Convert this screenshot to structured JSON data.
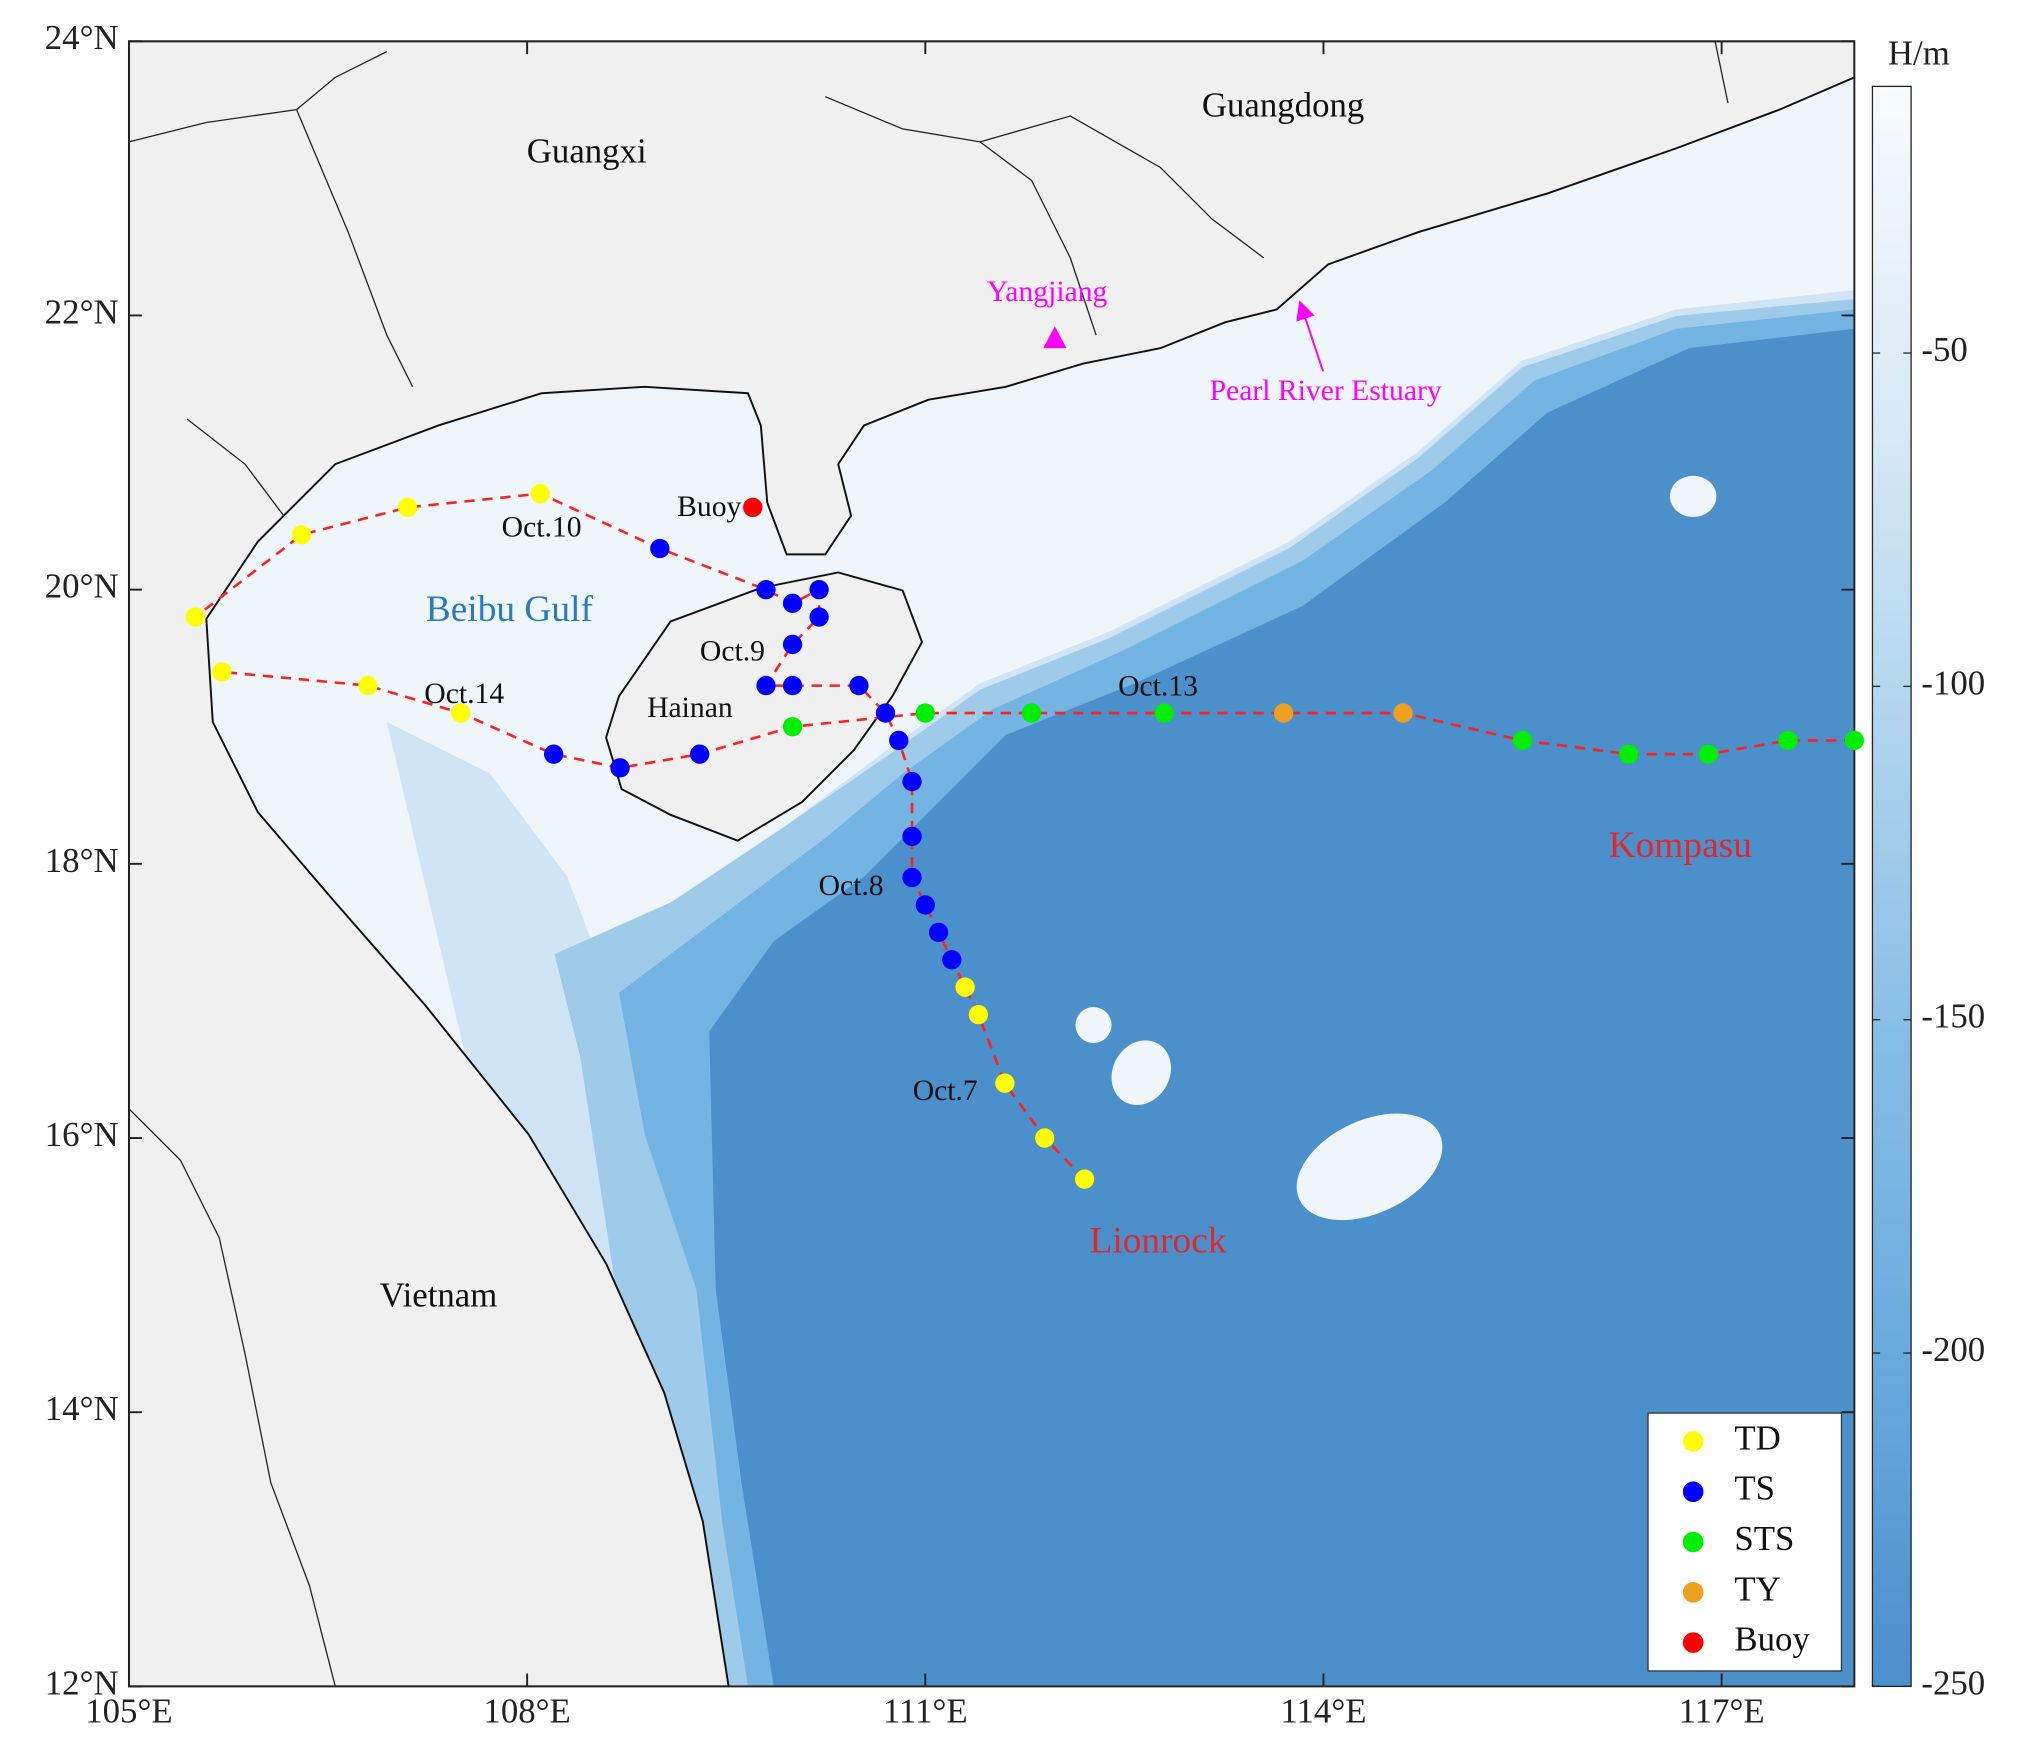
{
  "map": {
    "xlim": [
      105,
      118
    ],
    "ylim": [
      12,
      24
    ],
    "xticks": [
      {
        "value": 105,
        "label": "105°E"
      },
      {
        "value": 108,
        "label": "108°E"
      },
      {
        "value": 111,
        "label": "111°E"
      },
      {
        "value": 114,
        "label": "114°E"
      },
      {
        "value": 117,
        "label": "117°E"
      }
    ],
    "yticks": [
      {
        "value": 12,
        "label": "12°N"
      },
      {
        "value": 14,
        "label": "14°N"
      },
      {
        "value": 16,
        "label": "16°N"
      },
      {
        "value": 18,
        "label": "18°N"
      },
      {
        "value": 20,
        "label": "20°N"
      },
      {
        "value": 22,
        "label": "22°N"
      },
      {
        "value": 24,
        "label": "24°N"
      }
    ],
    "colorbar": {
      "label": "H/m",
      "clim": [
        -250,
        -10
      ],
      "ticks": [
        -50,
        -100,
        -150,
        -200,
        -250
      ]
    },
    "place_names": [
      "Guangxi",
      "Guangdong",
      "Yangjiang",
      "Pearl River Estuary",
      "Beibu Gulf",
      "Hainan",
      "Vietnam"
    ],
    "date_labels": [
      "Oct.7",
      "Oct.8",
      "Oct.9",
      "Oct.10",
      "Oct.13",
      "Oct.14"
    ],
    "legend": [
      {
        "name": "TD",
        "color": "#ffff00"
      },
      {
        "name": "TS",
        "color": "#0000ff"
      },
      {
        "name": "STS",
        "color": "#00ee00"
      },
      {
        "name": "TY",
        "color": "#f0a020"
      },
      {
        "name": "Buoy",
        "color": "#ff0000"
      }
    ],
    "buoy": {
      "label": "Buoy",
      "lon": 109.7,
      "lat": 20.6,
      "color": "#ff0000"
    },
    "tracks": [
      {
        "name": "Lionrock",
        "color": "#ff2020",
        "lon": [
          112.2,
          111.9,
          111.6,
          111.4,
          111.3,
          111.2,
          111.1,
          111.0,
          110.9,
          110.9,
          110.9,
          110.8,
          110.7,
          110.5,
          110.0,
          109.8,
          110.0,
          110.2,
          110.2,
          110.0,
          109.8,
          109.0,
          108.1,
          107.1,
          106.3,
          105.5
        ],
        "lat": [
          15.7,
          16.0,
          16.4,
          16.9,
          17.1,
          17.3,
          17.5,
          17.7,
          17.9,
          18.2,
          18.6,
          18.9,
          19.1,
          19.3,
          19.3,
          19.3,
          19.6,
          19.8,
          20.0,
          19.9,
          20.0,
          20.3,
          20.7,
          20.6,
          20.4,
          19.8
        ],
        "category": [
          "TD",
          "TD",
          "TD",
          "TD",
          "TD",
          "TS",
          "TS",
          "TS",
          "TS",
          "TS",
          "TS",
          "TS",
          "TS",
          "TS",
          "TS",
          "TS",
          "TS",
          "TS",
          "TS",
          "TS",
          "TS",
          "TS",
          "TD",
          "TD",
          "TD",
          "TD"
        ]
      },
      {
        "name": "Kompasu",
        "color": "#ff2020",
        "lon": [
          118.0,
          117.5,
          116.9,
          116.3,
          115.5,
          114.6,
          113.7,
          112.8,
          111.8,
          111.0,
          110.0,
          109.3,
          108.7,
          108.2,
          107.5,
          106.8,
          105.7
        ],
        "lat": [
          18.9,
          18.9,
          18.8,
          18.8,
          18.9,
          19.1,
          19.1,
          19.1,
          19.1,
          19.1,
          19.0,
          18.8,
          18.7,
          18.8,
          19.1,
          19.3,
          19.4
        ],
        "category": [
          "STS",
          "STS",
          "STS",
          "STS",
          "STS",
          "TY",
          "TY",
          "STS",
          "STS",
          "STS",
          "STS",
          "TS",
          "TS",
          "TS",
          "TD",
          "TD",
          "TD"
        ]
      }
    ]
  }
}
